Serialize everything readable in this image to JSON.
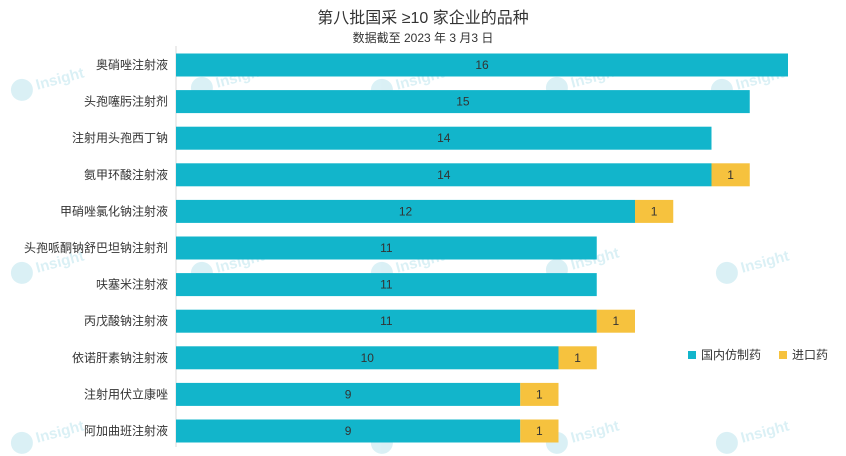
{
  "chart_data": {
    "type": "bar",
    "orientation": "horizontal",
    "stacked": true,
    "title": "第八批国采 ≥10 家企业的品种",
    "subtitle": "数据截至 2023 年 3 月3 日",
    "categories": [
      "奥硝唑注射液",
      "头孢噻肟注射剂",
      "注射用头孢西丁钠",
      "氨甲环酸注射液",
      "甲硝唑氯化钠注射液",
      "头孢哌酮钠舒巴坦钠注射剂",
      "呋塞米注射液",
      "丙戊酸钠注射液",
      "依诺肝素钠注射液",
      "注射用伏立康唑",
      "阿加曲班注射液"
    ],
    "series": [
      {
        "name": "国内仿制药",
        "color": "#12b5cb",
        "values": [
          16,
          15,
          14,
          14,
          12,
          11,
          11,
          11,
          10,
          9,
          9
        ]
      },
      {
        "name": "进口药",
        "color": "#f6c23e",
        "values": [
          0,
          0,
          0,
          1,
          1,
          0,
          0,
          1,
          1,
          1,
          1
        ]
      }
    ],
    "xlim": [
      0,
      16
    ],
    "grid": false,
    "legend_position": "right"
  },
  "watermark": {
    "text": "Insight"
  }
}
